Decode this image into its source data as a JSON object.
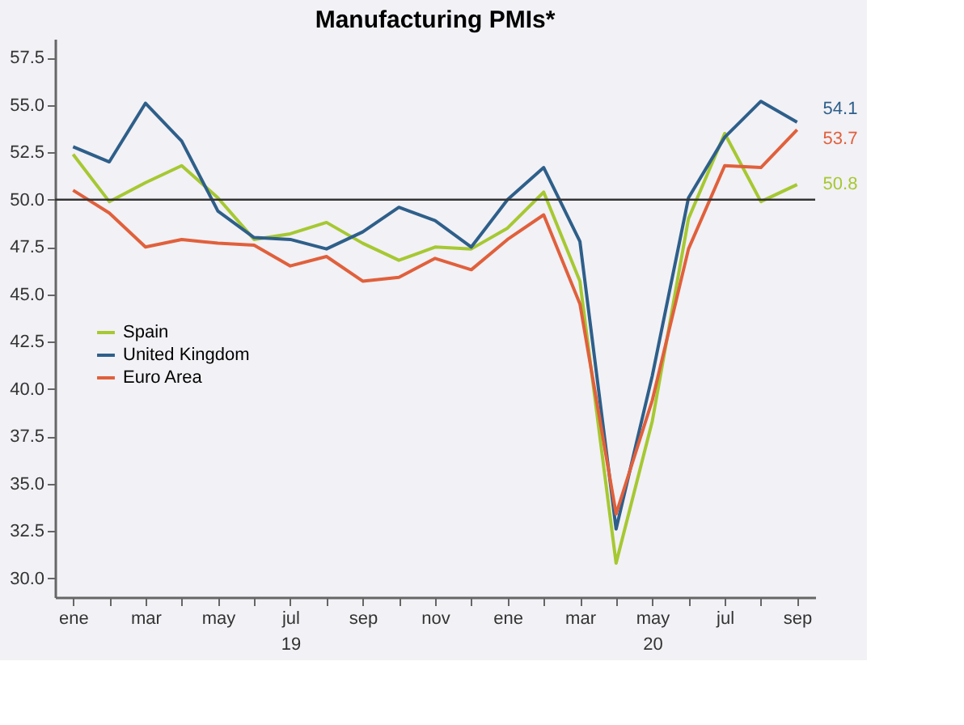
{
  "chart_data": {
    "type": "line",
    "title": "Manufacturing PMIs*",
    "categories": [
      "ene",
      null,
      "mar",
      null,
      "may",
      null,
      "jul\n19",
      null,
      "sep",
      null,
      "nov",
      null,
      "ene",
      null,
      "mar",
      null,
      "may\n20",
      null,
      "jul",
      null,
      "sep"
    ],
    "series": [
      {
        "name": "Spain",
        "color": "#a6c832",
        "values": [
          52.4,
          49.9,
          50.9,
          51.8,
          50.1,
          47.9,
          48.2,
          48.8,
          47.7,
          46.8,
          47.5,
          47.4,
          48.5,
          50.4,
          45.7,
          30.8,
          38.3,
          49.0,
          53.5,
          49.9,
          50.8
        ],
        "value_labels": [
          null,
          null,
          null,
          null,
          null,
          null,
          null,
          null,
          null,
          null,
          null,
          null,
          null,
          null,
          null,
          null,
          null,
          null,
          null,
          null,
          "50.8"
        ]
      },
      {
        "name": "United Kingdom",
        "color": "#2e5f8a",
        "values": [
          52.8,
          52.0,
          55.1,
          53.1,
          49.4,
          48.0,
          47.9,
          47.4,
          48.3,
          49.6,
          48.9,
          47.5,
          50.0,
          51.7,
          47.8,
          32.6,
          40.7,
          50.1,
          53.3,
          55.2,
          54.1
        ],
        "value_labels": [
          null,
          null,
          null,
          null,
          null,
          null,
          null,
          null,
          null,
          null,
          null,
          null,
          null,
          null,
          null,
          null,
          null,
          null,
          null,
          null,
          "54.1"
        ]
      },
      {
        "name": "Euro Area",
        "color": "#e0603c",
        "values": [
          50.5,
          49.3,
          47.5,
          47.9,
          47.7,
          47.6,
          46.5,
          47.0,
          45.7,
          45.9,
          46.9,
          46.3,
          47.9,
          49.2,
          44.5,
          33.4,
          39.4,
          47.4,
          51.8,
          51.7,
          53.7
        ],
        "value_labels": [
          null,
          null,
          null,
          null,
          null,
          null,
          null,
          null,
          null,
          null,
          null,
          null,
          null,
          null,
          null,
          null,
          null,
          null,
          null,
          null,
          "53.7"
        ]
      }
    ],
    "ylim": [
      29,
      58.5
    ],
    "yticks": [
      {
        "value": 30,
        "label": "30.0"
      },
      {
        "value": 32.5,
        "label": "32.5"
      },
      {
        "value": 35,
        "label": "35.0"
      },
      {
        "value": 37.5,
        "label": "37.5"
      },
      {
        "value": 40,
        "label": "40.0"
      },
      {
        "value": 42.5,
        "label": "42.5"
      },
      {
        "value": 45,
        "label": "45.0"
      },
      {
        "value": 47.5,
        "label": "47.5"
      },
      {
        "value": 50,
        "label": "50.0"
      },
      {
        "value": 52.5,
        "label": "52.5"
      },
      {
        "value": 55,
        "label": "55.0"
      },
      {
        "value": 57.5,
        "label": "57.5"
      }
    ],
    "ref_lines": [
      {
        "axis": "y",
        "value": 50,
        "color": "#333333"
      }
    ],
    "legend": "left",
    "grid": false,
    "marker": "none",
    "line_style": "solid"
  }
}
